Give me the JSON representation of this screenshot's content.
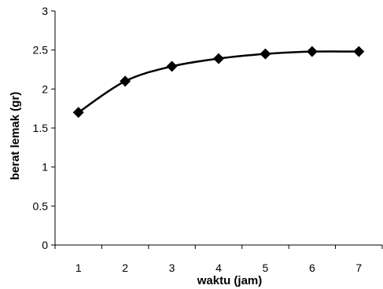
{
  "chart_data": {
    "type": "line",
    "title": "",
    "xlabel": "waktu (jam)",
    "ylabel": "berat lemak (gr)",
    "x": [
      1,
      2,
      3,
      4,
      5,
      6,
      7
    ],
    "series": [
      {
        "values": [
          1.7,
          2.1,
          2.29,
          2.39,
          2.45,
          2.48,
          2.48
        ],
        "marker": "diamond",
        "color": "#000000"
      }
    ],
    "ylim": [
      0,
      3
    ],
    "yticks": [
      0,
      0.5,
      1,
      1.5,
      2,
      2.5,
      3
    ],
    "xtick_labels": [
      "1",
      "2",
      "3",
      "4",
      "5",
      "6",
      "7"
    ],
    "ytick_labels": [
      "0",
      "0.5",
      "1",
      "1.5",
      "2",
      "2.5",
      "3"
    ],
    "grid": false,
    "legend": "none"
  }
}
